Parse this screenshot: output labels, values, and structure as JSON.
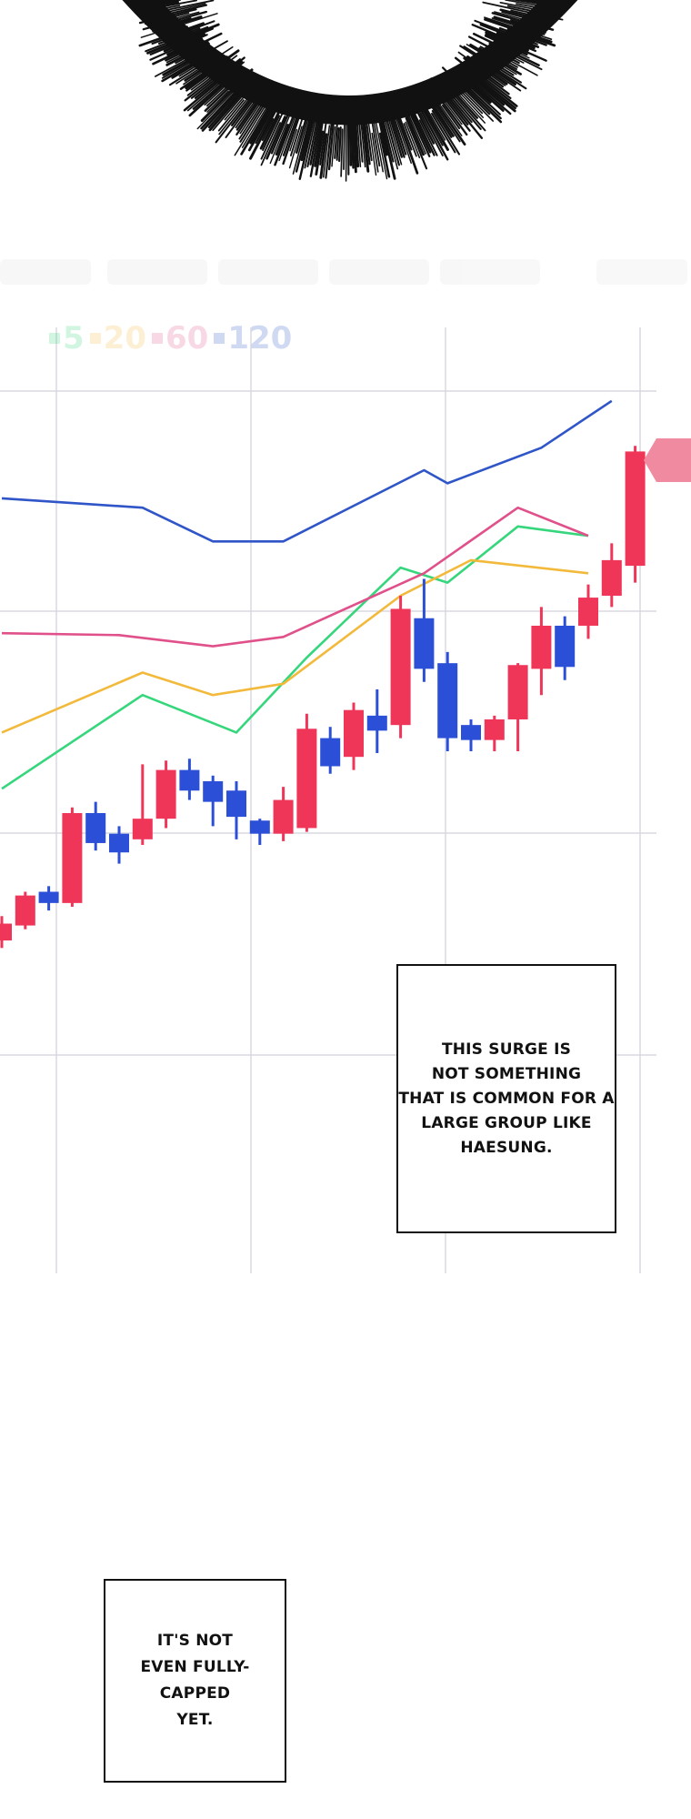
{
  "legend": [
    {
      "label": "5",
      "color": "#35d67c"
    },
    {
      "label": "20",
      "color": "#f2b93b"
    },
    {
      "label": "60",
      "color": "#e0508a"
    },
    {
      "label": "120",
      "color": "#2f55c8"
    }
  ],
  "captions": {
    "first": "This surge is\nnot something\nthat is common for a\nlarge group like\nHaesung.",
    "second": "It's not\neven fully-capped\nyet."
  },
  "colors": {
    "up_candle": "#ef3558",
    "down_candle": "#2b4fd6",
    "grid": "#d8d8e0",
    "burst": "#111111",
    "price_marker": "#f08aa0"
  },
  "chart_data": {
    "type": "candlestick",
    "candles": [
      {
        "dir": "up",
        "open": 49,
        "close": 58,
        "high": 62,
        "low": 45
      },
      {
        "dir": "up",
        "open": 57,
        "close": 73,
        "high": 75,
        "low": 55
      },
      {
        "dir": "down",
        "open": 75,
        "close": 69,
        "high": 78,
        "low": 65
      },
      {
        "dir": "up",
        "open": 69,
        "close": 117,
        "high": 120,
        "low": 67
      },
      {
        "dir": "down",
        "open": 117,
        "close": 101,
        "high": 123,
        "low": 97
      },
      {
        "dir": "down",
        "open": 106,
        "close": 96,
        "high": 110,
        "low": 90
      },
      {
        "dir": "up",
        "open": 103,
        "close": 114,
        "high": 143,
        "low": 100
      },
      {
        "dir": "up",
        "open": 114,
        "close": 140,
        "high": 145,
        "low": 109
      },
      {
        "dir": "down",
        "open": 140,
        "close": 129,
        "high": 146,
        "low": 124
      },
      {
        "dir": "down",
        "open": 134,
        "close": 123,
        "high": 137,
        "low": 110
      },
      {
        "dir": "down",
        "open": 129,
        "close": 115,
        "high": 134,
        "low": 103
      },
      {
        "dir": "down",
        "open": 113,
        "close": 106,
        "high": 114,
        "low": 100
      },
      {
        "dir": "up",
        "open": 106,
        "close": 124,
        "high": 131,
        "low": 102
      },
      {
        "dir": "up",
        "open": 109,
        "close": 162,
        "high": 170,
        "low": 107
      },
      {
        "dir": "down",
        "open": 157,
        "close": 142,
        "high": 163,
        "low": 138
      },
      {
        "dir": "up",
        "open": 147,
        "close": 172,
        "high": 176,
        "low": 140
      },
      {
        "dir": "down",
        "open": 169,
        "close": 161,
        "high": 183,
        "low": 149
      },
      {
        "dir": "up",
        "open": 164,
        "close": 226,
        "high": 233,
        "low": 157
      },
      {
        "dir": "down",
        "open": 221,
        "close": 194,
        "high": 242,
        "low": 187
      },
      {
        "dir": "down",
        "open": 197,
        "close": 157,
        "high": 203,
        "low": 150
      },
      {
        "dir": "down",
        "open": 164,
        "close": 156,
        "high": 167,
        "low": 150
      },
      {
        "dir": "up",
        "open": 156,
        "close": 167,
        "high": 169,
        "low": 150
      },
      {
        "dir": "up",
        "open": 167,
        "close": 196,
        "high": 197,
        "low": 150
      },
      {
        "dir": "up",
        "open": 194,
        "close": 217,
        "high": 227,
        "low": 180
      },
      {
        "dir": "down",
        "open": 217,
        "close": 195,
        "high": 222,
        "low": 188
      },
      {
        "dir": "up",
        "open": 217,
        "close": 232,
        "high": 239,
        "low": 210
      },
      {
        "dir": "up",
        "open": 233,
        "close": 252,
        "high": 261,
        "low": 227
      },
      {
        "dir": "up",
        "open": 249,
        "close": 310,
        "high": 313,
        "low": 240
      }
    ],
    "moving_averages": [
      {
        "name": "5",
        "color": "#35d67c",
        "points": [
          [
            0,
            130
          ],
          [
            6,
            180
          ],
          [
            10,
            160
          ],
          [
            13,
            200
          ],
          [
            17,
            248
          ],
          [
            19,
            240
          ],
          [
            22,
            270
          ],
          [
            25,
            265
          ]
        ]
      },
      {
        "name": "20",
        "color": "#f2b93b",
        "points": [
          [
            0,
            160
          ],
          [
            6,
            192
          ],
          [
            9,
            180
          ],
          [
            12,
            186
          ],
          [
            17,
            233
          ],
          [
            20,
            252
          ],
          [
            25,
            245
          ]
        ]
      },
      {
        "name": "60",
        "color": "#e0508a",
        "points": [
          [
            0,
            213
          ],
          [
            5,
            212
          ],
          [
            9,
            206
          ],
          [
            12,
            211
          ],
          [
            18,
            245
          ],
          [
            22,
            280
          ],
          [
            25,
            265
          ]
        ]
      },
      {
        "name": "120",
        "color": "#2f55c8",
        "points": [
          [
            0,
            285
          ],
          [
            6,
            280
          ],
          [
            9,
            262
          ],
          [
            12,
            262
          ],
          [
            18,
            300
          ],
          [
            19,
            293
          ],
          [
            23,
            312
          ],
          [
            26,
            337
          ]
        ]
      }
    ],
    "xlabel": "",
    "ylabel": ""
  }
}
